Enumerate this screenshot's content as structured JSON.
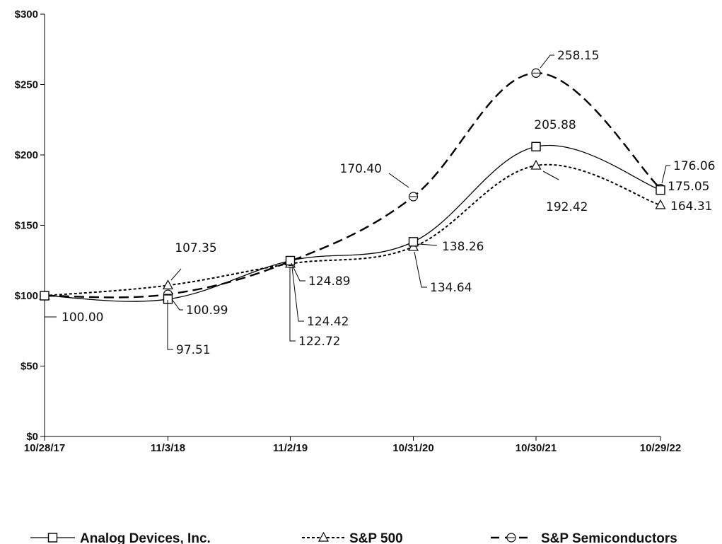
{
  "chart_data": {
    "type": "line",
    "categories": [
      "10/28/17",
      "11/3/18",
      "11/2/19",
      "10/31/20",
      "10/30/21",
      "10/29/22"
    ],
    "ylim": [
      0,
      300
    ],
    "yticks": [
      0,
      50,
      100,
      150,
      200,
      250,
      300
    ],
    "ytick_labels": [
      "$0",
      "$50",
      "$100",
      "$150",
      "$200",
      "$250",
      "$300"
    ],
    "grid": false,
    "legend_position": "bottom",
    "title": "",
    "xlabel": "",
    "ylabel": "",
    "series": [
      {
        "name": "Analog Devices, Inc.",
        "values": [
          100.0,
          97.51,
          124.89,
          138.26,
          205.88,
          175.05
        ],
        "labels": [
          "100.00",
          "97.51",
          "124.89",
          "138.26",
          "205.88",
          "175.05"
        ],
        "line_style": "solid",
        "marker": "square",
        "color": "#000000"
      },
      {
        "name": "S&P 500",
        "values": [
          100.0,
          107.35,
          122.72,
          134.64,
          192.42,
          164.31
        ],
        "labels": [
          "",
          "107.35",
          "122.72",
          "134.64",
          "192.42",
          "164.31"
        ],
        "line_style": "dotted",
        "marker": "triangle",
        "color": "#000000"
      },
      {
        "name": "S&P Semiconductors",
        "values": [
          100.0,
          100.99,
          124.42,
          170.4,
          258.15,
          176.06
        ],
        "labels": [
          "",
          "100.99",
          "124.42",
          "170.40",
          "258.15",
          "176.06"
        ],
        "line_style": "dashed",
        "marker": "circle",
        "color": "#000000"
      }
    ]
  }
}
